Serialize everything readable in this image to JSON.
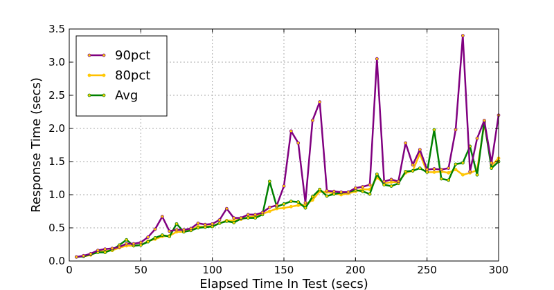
{
  "chart_data": {
    "type": "line",
    "xlabel": "Elapsed Time In Test (secs)",
    "ylabel": "Response Time (secs)",
    "xlim": [
      0,
      300
    ],
    "ylim": [
      0,
      3.5
    ],
    "xticks": [
      0,
      50,
      100,
      150,
      200,
      250,
      300
    ],
    "yticks": [
      0.0,
      0.5,
      1.0,
      1.5,
      2.0,
      2.5,
      3.0,
      3.5
    ],
    "xtick_labels": [
      "0",
      "50",
      "100",
      "150",
      "200",
      "250",
      "300"
    ],
    "ytick_labels": [
      "0.0",
      "0.5",
      "1.0",
      "1.5",
      "2.0",
      "2.5",
      "3.0",
      "3.5"
    ],
    "grid": true,
    "legend_position": "top-left",
    "x": [
      5,
      10,
      15,
      20,
      25,
      30,
      35,
      40,
      45,
      50,
      55,
      60,
      65,
      70,
      75,
      80,
      85,
      90,
      95,
      100,
      105,
      110,
      115,
      120,
      125,
      130,
      135,
      140,
      145,
      150,
      155,
      160,
      165,
      170,
      175,
      180,
      185,
      190,
      195,
      200,
      205,
      210,
      215,
      220,
      225,
      230,
      235,
      240,
      245,
      250,
      255,
      260,
      265,
      270,
      275,
      280,
      285,
      290,
      295,
      300
    ],
    "series": [
      {
        "name": "90pct",
        "color": "#800080",
        "marker_fill": "#ffd000",
        "values": [
          0.06,
          0.08,
          0.11,
          0.16,
          0.18,
          0.19,
          0.21,
          0.26,
          0.26,
          0.28,
          0.36,
          0.48,
          0.67,
          0.45,
          0.47,
          0.47,
          0.49,
          0.57,
          0.55,
          0.56,
          0.62,
          0.79,
          0.65,
          0.65,
          0.7,
          0.7,
          0.73,
          0.81,
          0.84,
          1.13,
          1.96,
          1.78,
          0.88,
          2.12,
          2.4,
          1.06,
          1.05,
          1.04,
          1.04,
          1.1,
          1.12,
          1.15,
          3.05,
          1.2,
          1.23,
          1.2,
          1.78,
          1.45,
          1.68,
          1.38,
          1.39,
          1.38,
          1.4,
          1.98,
          3.4,
          1.35,
          1.85,
          2.12,
          1.48,
          2.2
        ]
      },
      {
        "name": "80pct",
        "color": "#ffc000",
        "marker_fill": "#ffd000",
        "values": [
          0.06,
          0.07,
          0.09,
          0.14,
          0.15,
          0.16,
          0.2,
          0.23,
          0.23,
          0.24,
          0.3,
          0.33,
          0.37,
          0.38,
          0.44,
          0.44,
          0.47,
          0.52,
          0.52,
          0.53,
          0.57,
          0.61,
          0.61,
          0.63,
          0.66,
          0.68,
          0.71,
          0.75,
          0.79,
          0.8,
          0.82,
          0.84,
          0.85,
          0.92,
          1.05,
          1.04,
          1.02,
          1.0,
          1.02,
          1.05,
          1.08,
          1.08,
          1.26,
          1.17,
          1.19,
          1.19,
          1.33,
          1.36,
          1.62,
          1.34,
          1.34,
          1.35,
          1.33,
          1.38,
          1.3,
          1.33,
          1.37,
          2.07,
          1.44,
          1.55
        ]
      },
      {
        "name": "Avg",
        "color": "#008000",
        "marker_fill": "#ffd000",
        "values": [
          0.06,
          0.07,
          0.1,
          0.13,
          0.13,
          0.17,
          0.24,
          0.32,
          0.23,
          0.24,
          0.29,
          0.35,
          0.39,
          0.37,
          0.56,
          0.44,
          0.46,
          0.5,
          0.51,
          0.52,
          0.57,
          0.6,
          0.58,
          0.64,
          0.65,
          0.65,
          0.7,
          1.2,
          0.82,
          0.86,
          0.9,
          0.89,
          0.8,
          0.97,
          1.08,
          0.98,
          1.01,
          1.03,
          1.04,
          1.07,
          1.05,
          1.01,
          1.31,
          1.15,
          1.13,
          1.17,
          1.35,
          1.36,
          1.4,
          1.34,
          1.98,
          1.24,
          1.22,
          1.46,
          1.48,
          1.73,
          1.3,
          2.1,
          1.4,
          1.5
        ]
      }
    ]
  }
}
